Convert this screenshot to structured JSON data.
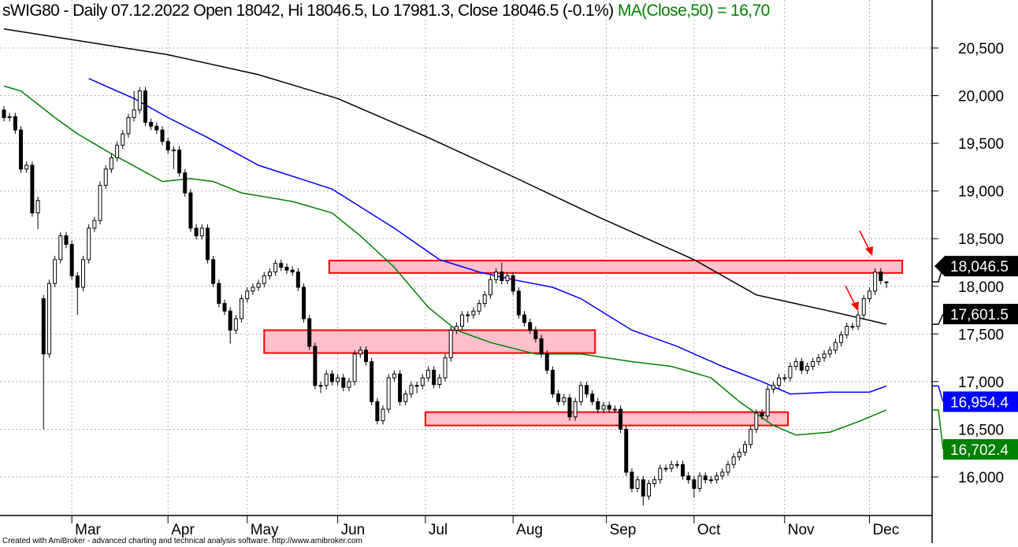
{
  "header": {
    "title": "sWIG80 - Daily 07.12.2022 Open 18042, Hi 18046.5, Lo 17981.3, Close 18046.5 (-0.1%)",
    "ma_text": "MA(Close,50) = 16,70"
  },
  "footer": "Created with AmiBroker - advanced charting and technical analysis software. http://www.amibroker.com",
  "colors": {
    "ma_long": "#000000",
    "ma_mid": "#0000ff",
    "ma_50": "#008000",
    "zone_fill": "#ffc0cb",
    "zone_border": "#ff0000",
    "arrow": "#ff0000"
  },
  "chart_data": {
    "type": "candlestick",
    "ylim": [
      15650,
      20700
    ],
    "grid": true,
    "y_ticks": [
      {
        "value": 20500,
        "label": "20,500"
      },
      {
        "value": 20000,
        "label": "20,000"
      },
      {
        "value": 19500,
        "label": "19,500"
      },
      {
        "value": 19000,
        "label": "19,000"
      },
      {
        "value": 18500,
        "label": "18,500"
      },
      {
        "value": 18000,
        "label": "18,000"
      },
      {
        "value": 17500,
        "label": "17,500"
      },
      {
        "value": 17000,
        "label": "17,000"
      },
      {
        "value": 16500,
        "label": "16,500"
      },
      {
        "value": 16000,
        "label": "16,000"
      }
    ],
    "x_ticks": [
      {
        "bar": 12,
        "label": "Mar"
      },
      {
        "bar": 29,
        "label": "Apr"
      },
      {
        "bar": 43,
        "label": "May"
      },
      {
        "bar": 59,
        "label": "Jun"
      },
      {
        "bar": 74.5,
        "label": "Jul"
      },
      {
        "bar": 90,
        "label": "Aug"
      },
      {
        "bar": 106.5,
        "label": "Sep"
      },
      {
        "bar": 122,
        "label": "Oct"
      },
      {
        "bar": 138,
        "label": "Nov"
      },
      {
        "bar": 153,
        "label": "Dec"
      }
    ],
    "ohlc": [
      [
        19850,
        19890,
        19730,
        19770
      ],
      [
        19770,
        19820,
        19730,
        19780
      ],
      [
        19780,
        19820,
        19600,
        19640
      ],
      [
        19640,
        19680,
        19190,
        19230
      ],
      [
        19230,
        19310,
        19190,
        19270
      ],
      [
        19270,
        19310,
        18730,
        18770
      ],
      [
        18770,
        18940,
        18600,
        18900
      ],
      [
        17870,
        17910,
        16500,
        17290
      ],
      [
        17290,
        18070,
        17250,
        18030
      ],
      [
        18030,
        18320,
        17990,
        18280
      ],
      [
        18280,
        18570,
        18240,
        18530
      ],
      [
        18530,
        18570,
        18400,
        18440
      ],
      [
        18440,
        18480,
        18070,
        18110
      ],
      [
        18110,
        18150,
        17700,
        17990
      ],
      [
        17990,
        18320,
        17950,
        18280
      ],
      [
        18280,
        18650,
        18240,
        18610
      ],
      [
        18610,
        18730,
        18570,
        18690
      ],
      [
        18690,
        19100,
        18650,
        19060
      ],
      [
        19060,
        19270,
        19020,
        19230
      ],
      [
        19230,
        19390,
        19190,
        19350
      ],
      [
        19350,
        19520,
        19310,
        19480
      ],
      [
        19480,
        19640,
        19440,
        19600
      ],
      [
        19600,
        19810,
        19560,
        19770
      ],
      [
        19770,
        20050,
        19730,
        19850
      ],
      [
        19850,
        20090,
        19810,
        20050
      ],
      [
        20050,
        20090,
        19680,
        19720
      ],
      [
        19720,
        19760,
        19640,
        19680
      ],
      [
        19680,
        19720,
        19600,
        19640
      ],
      [
        19640,
        19680,
        19480,
        19520
      ],
      [
        19520,
        19560,
        19390,
        19430
      ],
      [
        19430,
        19470,
        19230,
        19430
      ],
      [
        19430,
        19470,
        19150,
        19190
      ],
      [
        19190,
        19230,
        18940,
        18980
      ],
      [
        18980,
        19020,
        18570,
        18610
      ],
      [
        18610,
        18650,
        18490,
        18530
      ],
      [
        18530,
        18650,
        18490,
        18610
      ],
      [
        18610,
        18650,
        18240,
        18280
      ],
      [
        18280,
        18320,
        17990,
        18030
      ],
      [
        18030,
        18070,
        17780,
        17820
      ],
      [
        17820,
        17860,
        17700,
        17740
      ],
      [
        17740,
        17780,
        17400,
        17540
      ],
      [
        17540,
        17700,
        17500,
        17660
      ],
      [
        17660,
        17910,
        17620,
        17870
      ],
      [
        17870,
        17990,
        17830,
        17950
      ],
      [
        17950,
        18030,
        17910,
        17990
      ],
      [
        17990,
        18070,
        17950,
        18030
      ],
      [
        18030,
        18150,
        17990,
        18110
      ],
      [
        18110,
        18190,
        18070,
        18150
      ],
      [
        18150,
        18280,
        18110,
        18240
      ],
      [
        18240,
        18280,
        18160,
        18200
      ],
      [
        18200,
        18240,
        18130,
        18170
      ],
      [
        18170,
        18210,
        18110,
        18150
      ],
      [
        18150,
        18190,
        17950,
        17990
      ],
      [
        17990,
        18030,
        17620,
        17660
      ],
      [
        17660,
        17700,
        17330,
        17370
      ],
      [
        17370,
        17410,
        16920,
        16960
      ],
      [
        16960,
        17000,
        16880,
        16960
      ],
      [
        16960,
        17120,
        16920,
        17080
      ],
      [
        17080,
        17120,
        16960,
        17000
      ],
      [
        17000,
        17080,
        16960,
        17040
      ],
      [
        17040,
        17080,
        16900,
        16940
      ],
      [
        16940,
        17040,
        16900,
        17000
      ],
      [
        17000,
        17330,
        16960,
        17290
      ],
      [
        17290,
        17370,
        17250,
        17330
      ],
      [
        17330,
        17370,
        17170,
        17210
      ],
      [
        17210,
        17250,
        16750,
        16790
      ],
      [
        16790,
        16830,
        16550,
        16590
      ],
      [
        16590,
        16750,
        16550,
        16710
      ],
      [
        16710,
        17080,
        16670,
        17040
      ],
      [
        17040,
        17120,
        17000,
        17080
      ],
      [
        17080,
        17120,
        16750,
        16790
      ],
      [
        16790,
        16910,
        16750,
        16870
      ],
      [
        16870,
        17000,
        16830,
        16960
      ],
      [
        16960,
        17000,
        16880,
        16960
      ],
      [
        16960,
        17080,
        16920,
        17040
      ],
      [
        17040,
        17160,
        17000,
        17120
      ],
      [
        17120,
        17160,
        16930,
        16970
      ],
      [
        16970,
        17080,
        16930,
        17040
      ],
      [
        17040,
        17290,
        17000,
        17250
      ],
      [
        17250,
        17580,
        17210,
        17540
      ],
      [
        17540,
        17620,
        17500,
        17580
      ],
      [
        17580,
        17740,
        17540,
        17700
      ],
      [
        17700,
        17740,
        17620,
        17700
      ],
      [
        17700,
        17780,
        17660,
        17740
      ],
      [
        17740,
        17860,
        17700,
        17820
      ],
      [
        17820,
        17950,
        17780,
        17910
      ],
      [
        17910,
        18110,
        17870,
        18070
      ],
      [
        18070,
        18190,
        18030,
        18150
      ],
      [
        18150,
        18250,
        18020,
        18060
      ],
      [
        18060,
        18150,
        18020,
        18110
      ],
      [
        18110,
        18150,
        17910,
        17950
      ],
      [
        17950,
        17990,
        17660,
        17700
      ],
      [
        17700,
        17740,
        17580,
        17620
      ],
      [
        17620,
        17660,
        17500,
        17540
      ],
      [
        17540,
        17580,
        17410,
        17450
      ],
      [
        17450,
        17490,
        17250,
        17290
      ],
      [
        17290,
        17330,
        17080,
        17120
      ],
      [
        17120,
        17160,
        16830,
        16870
      ],
      [
        16870,
        16910,
        16750,
        16790
      ],
      [
        16790,
        16870,
        16750,
        16830
      ],
      [
        16830,
        16870,
        16590,
        16630
      ],
      [
        16630,
        16830,
        16590,
        16790
      ],
      [
        16790,
        17000,
        16750,
        16960
      ],
      [
        16960,
        17000,
        16830,
        16870
      ],
      [
        16870,
        16910,
        16750,
        16790
      ],
      [
        16790,
        16830,
        16670,
        16710
      ],
      [
        16710,
        16790,
        16670,
        16750
      ],
      [
        16750,
        16790,
        16670,
        16710
      ],
      [
        16710,
        16750,
        16670,
        16710
      ],
      [
        16710,
        16750,
        16460,
        16500
      ],
      [
        16500,
        16540,
        16010,
        16050
      ],
      [
        16050,
        16090,
        15840,
        15880
      ],
      [
        15880,
        16010,
        15840,
        15970
      ],
      [
        15970,
        16010,
        15700,
        15800
      ],
      [
        15800,
        15970,
        15760,
        15930
      ],
      [
        15930,
        16010,
        15890,
        15970
      ],
      [
        15970,
        16130,
        15930,
        16090
      ],
      [
        16090,
        16130,
        16050,
        16090
      ],
      [
        16090,
        16170,
        16050,
        16130
      ],
      [
        16130,
        16170,
        16090,
        16130
      ],
      [
        16130,
        16170,
        15970,
        16010
      ],
      [
        16010,
        16050,
        15930,
        15970
      ],
      [
        15970,
        16010,
        15780,
        15880
      ],
      [
        15880,
        16050,
        15840,
        16010
      ],
      [
        16010,
        16050,
        15930,
        15970
      ],
      [
        15970,
        16010,
        15930,
        15970
      ],
      [
        15970,
        16050,
        15930,
        16010
      ],
      [
        16010,
        16090,
        15970,
        16050
      ],
      [
        16050,
        16170,
        16010,
        16130
      ],
      [
        16130,
        16250,
        16090,
        16210
      ],
      [
        16210,
        16300,
        16170,
        16260
      ],
      [
        16260,
        16380,
        16220,
        16340
      ],
      [
        16340,
        16540,
        16300,
        16500
      ],
      [
        16500,
        16710,
        16460,
        16670
      ],
      [
        16670,
        16710,
        16600,
        16640
      ],
      [
        16640,
        16960,
        16600,
        16920
      ],
      [
        16920,
        17000,
        16880,
        16960
      ],
      [
        16960,
        17080,
        16920,
        17040
      ],
      [
        17040,
        17080,
        17000,
        17040
      ],
      [
        17040,
        17200,
        17000,
        17160
      ],
      [
        17160,
        17250,
        17120,
        17210
      ],
      [
        17210,
        17250,
        17080,
        17120
      ],
      [
        17120,
        17200,
        17080,
        17160
      ],
      [
        17160,
        17250,
        17120,
        17210
      ],
      [
        17210,
        17290,
        17170,
        17250
      ],
      [
        17250,
        17330,
        17210,
        17290
      ],
      [
        17290,
        17370,
        17250,
        17330
      ],
      [
        17330,
        17450,
        17290,
        17410
      ],
      [
        17410,
        17530,
        17370,
        17490
      ],
      [
        17490,
        17620,
        17450,
        17580
      ],
      [
        17580,
        17620,
        17540,
        17580
      ],
      [
        17580,
        17740,
        17540,
        17700
      ],
      [
        17700,
        17910,
        17660,
        17870
      ],
      [
        17870,
        17990,
        17830,
        17950
      ],
      [
        17950,
        18190,
        17910,
        18150
      ],
      [
        18150,
        18190,
        18020,
        18060
      ],
      [
        18042,
        18046.5,
        17981.3,
        18046.5
      ]
    ],
    "series": [
      {
        "color": "#000000",
        "last_label": "17,601.5",
        "points": [
          [
            0,
            20700
          ],
          [
            29,
            20430
          ],
          [
            45,
            20220
          ],
          [
            59,
            19970
          ],
          [
            75,
            19560
          ],
          [
            90,
            19150
          ],
          [
            105,
            18730
          ],
          [
            122,
            18280
          ],
          [
            133,
            17910
          ],
          [
            146,
            17740
          ],
          [
            156,
            17601.5
          ]
        ]
      },
      {
        "color": "#0000ff",
        "last_label": "16,954.4",
        "points": [
          [
            15,
            20180
          ],
          [
            23,
            19970
          ],
          [
            29,
            19770
          ],
          [
            36,
            19560
          ],
          [
            45,
            19270
          ],
          [
            58,
            19020
          ],
          [
            69,
            18610
          ],
          [
            77,
            18280
          ],
          [
            84,
            18150
          ],
          [
            90,
            18070
          ],
          [
            97,
            17990
          ],
          [
            102,
            17870
          ],
          [
            111,
            17540
          ],
          [
            119,
            17370
          ],
          [
            127,
            17160
          ],
          [
            134,
            17000
          ],
          [
            139,
            16870
          ],
          [
            146,
            16890
          ],
          [
            153,
            16890
          ],
          [
            156,
            16954.4
          ]
        ]
      },
      {
        "name": "MA(Close,50)",
        "color": "#008000",
        "last_label": "16,702.4",
        "points": [
          [
            0,
            20100
          ],
          [
            3,
            20050
          ],
          [
            9,
            19770
          ],
          [
            13,
            19600
          ],
          [
            19,
            19390
          ],
          [
            24,
            19230
          ],
          [
            28,
            19100
          ],
          [
            33,
            19130
          ],
          [
            37,
            19100
          ],
          [
            42,
            18980
          ],
          [
            51,
            18890
          ],
          [
            58,
            18770
          ],
          [
            63,
            18530
          ],
          [
            69,
            18200
          ],
          [
            75,
            17780
          ],
          [
            80,
            17540
          ],
          [
            86,
            17410
          ],
          [
            94,
            17290
          ],
          [
            102,
            17290
          ],
          [
            111,
            17210
          ],
          [
            118,
            17160
          ],
          [
            125,
            17040
          ],
          [
            130,
            16790
          ],
          [
            136,
            16540
          ],
          [
            140,
            16440
          ],
          [
            146,
            16470
          ],
          [
            151,
            16580
          ],
          [
            156,
            16702.4
          ]
        ]
      }
    ],
    "last_close_label": "18,046.5",
    "zones": [
      {
        "from_bar": 57.5,
        "to_bar": 158.8,
        "high": 18270,
        "low": 18140
      },
      {
        "from_bar": 46,
        "to_bar": 104.5,
        "high": 17540,
        "low": 17300
      },
      {
        "from_bar": 74.5,
        "to_bar": 138.6,
        "high": 16680,
        "low": 16540
      }
    ],
    "arrows": [
      {
        "bar": 153.5,
        "price": 18320
      },
      {
        "bar": 151,
        "price": 17740
      }
    ]
  }
}
